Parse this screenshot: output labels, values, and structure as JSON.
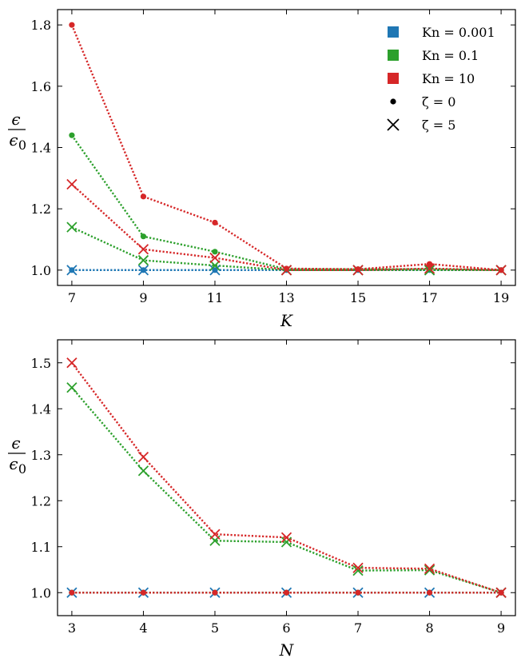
{
  "chart_data": [
    {
      "type": "line",
      "panel": "top",
      "xlabel": "K",
      "ylabel": {
        "num": "ϵ",
        "den": "ϵ",
        "den_sub": "0"
      },
      "x": [
        7,
        9,
        11,
        13,
        15,
        17,
        19
      ],
      "xticks": [
        "7",
        "9",
        "11",
        "13",
        "15",
        "17",
        "19"
      ],
      "xlim": [
        6.6,
        19.4
      ],
      "ylim": [
        0.95,
        1.85
      ],
      "yticks": [
        1.0,
        1.2,
        1.4,
        1.6,
        1.8
      ],
      "ytick_labels": [
        "1.0",
        "1.2",
        "1.4",
        "1.6",
        "1.8"
      ],
      "series": [
        {
          "name": "Kn = 0.001, ζ = 0",
          "color": "#1f77b4",
          "marker": "dot",
          "values": [
            1.0,
            1.0,
            1.0,
            1.0,
            1.0,
            1.0,
            1.0
          ]
        },
        {
          "name": "Kn = 0.001, ζ = 5",
          "color": "#1f77b4",
          "marker": "x",
          "values": [
            1.0,
            1.0,
            1.0,
            1.0,
            1.0,
            1.0,
            1.0
          ]
        },
        {
          "name": "Kn = 0.1, ζ = 0",
          "color": "#2ca02c",
          "marker": "dot",
          "values": [
            1.44,
            1.11,
            1.06,
            1.003,
            1.003,
            1.003,
            1.0
          ]
        },
        {
          "name": "Kn = 0.1, ζ = 5",
          "color": "#2ca02c",
          "marker": "x",
          "values": [
            1.14,
            1.032,
            1.015,
            1.0,
            1.0,
            1.0,
            1.0
          ]
        },
        {
          "name": "Kn = 10, ζ = 0",
          "color": "#d62728",
          "marker": "dot",
          "values": [
            1.8,
            1.24,
            1.155,
            1.005,
            1.003,
            1.02,
            1.0
          ]
        },
        {
          "name": "Kn = 10, ζ = 5",
          "color": "#d62728",
          "marker": "x",
          "values": [
            1.28,
            1.068,
            1.04,
            1.0,
            1.0,
            1.005,
            1.0
          ]
        }
      ],
      "legend": {
        "position": "top-right",
        "entries": [
          {
            "label": "Kn = 0.001",
            "swatch": "square",
            "color": "#1f77b4"
          },
          {
            "label": "Kn = 0.1",
            "swatch": "square",
            "color": "#2ca02c"
          },
          {
            "label": "Kn = 10",
            "swatch": "square",
            "color": "#d62728"
          },
          {
            "label": "ζ = 0",
            "swatch": "dot",
            "color": "#000000"
          },
          {
            "label": "ζ = 5",
            "swatch": "x",
            "color": "#000000"
          }
        ]
      }
    },
    {
      "type": "line",
      "panel": "bottom",
      "xlabel": "N",
      "ylabel": {
        "num": "ϵ",
        "den": "ϵ",
        "den_sub": "0"
      },
      "x": [
        3,
        4,
        5,
        6,
        7,
        8,
        9
      ],
      "xticks": [
        "3",
        "4",
        "5",
        "6",
        "7",
        "8",
        "9"
      ],
      "xlim": [
        2.8,
        9.2
      ],
      "ylim": [
        0.95,
        1.55
      ],
      "yticks": [
        1.0,
        1.1,
        1.2,
        1.3,
        1.4,
        1.5
      ],
      "ytick_labels": [
        "1.0",
        "1.1",
        "1.2",
        "1.3",
        "1.4",
        "1.5"
      ],
      "series": [
        {
          "name": "Kn = 0.001, ζ = 0",
          "color": "#1f77b4",
          "marker": "dot",
          "values": [
            1.0,
            1.0,
            1.0,
            1.0,
            1.0,
            1.0,
            1.0
          ]
        },
        {
          "name": "Kn = 0.001, ζ = 5",
          "color": "#1f77b4",
          "marker": "x",
          "values": [
            1.0,
            1.0,
            1.0,
            1.0,
            1.0,
            1.0,
            1.0
          ]
        },
        {
          "name": "Kn = 0.1, ζ = 0",
          "color": "#2ca02c",
          "marker": "dot",
          "values": [
            1.0,
            1.0,
            1.0,
            1.0,
            1.0,
            1.0,
            1.0
          ]
        },
        {
          "name": "Kn = 0.1, ζ = 5",
          "color": "#2ca02c",
          "marker": "x",
          "values": [
            1.446,
            1.265,
            1.113,
            1.11,
            1.048,
            1.049,
            1.0
          ]
        },
        {
          "name": "Kn = 10, ζ = 0",
          "color": "#d62728",
          "marker": "dot",
          "values": [
            1.0,
            1.0,
            1.0,
            1.0,
            1.0,
            1.0,
            1.0
          ]
        },
        {
          "name": "Kn = 10, ζ = 5",
          "color": "#d62728",
          "marker": "x",
          "values": [
            1.5,
            1.295,
            1.127,
            1.12,
            1.054,
            1.052,
            1.0
          ]
        }
      ]
    }
  ]
}
